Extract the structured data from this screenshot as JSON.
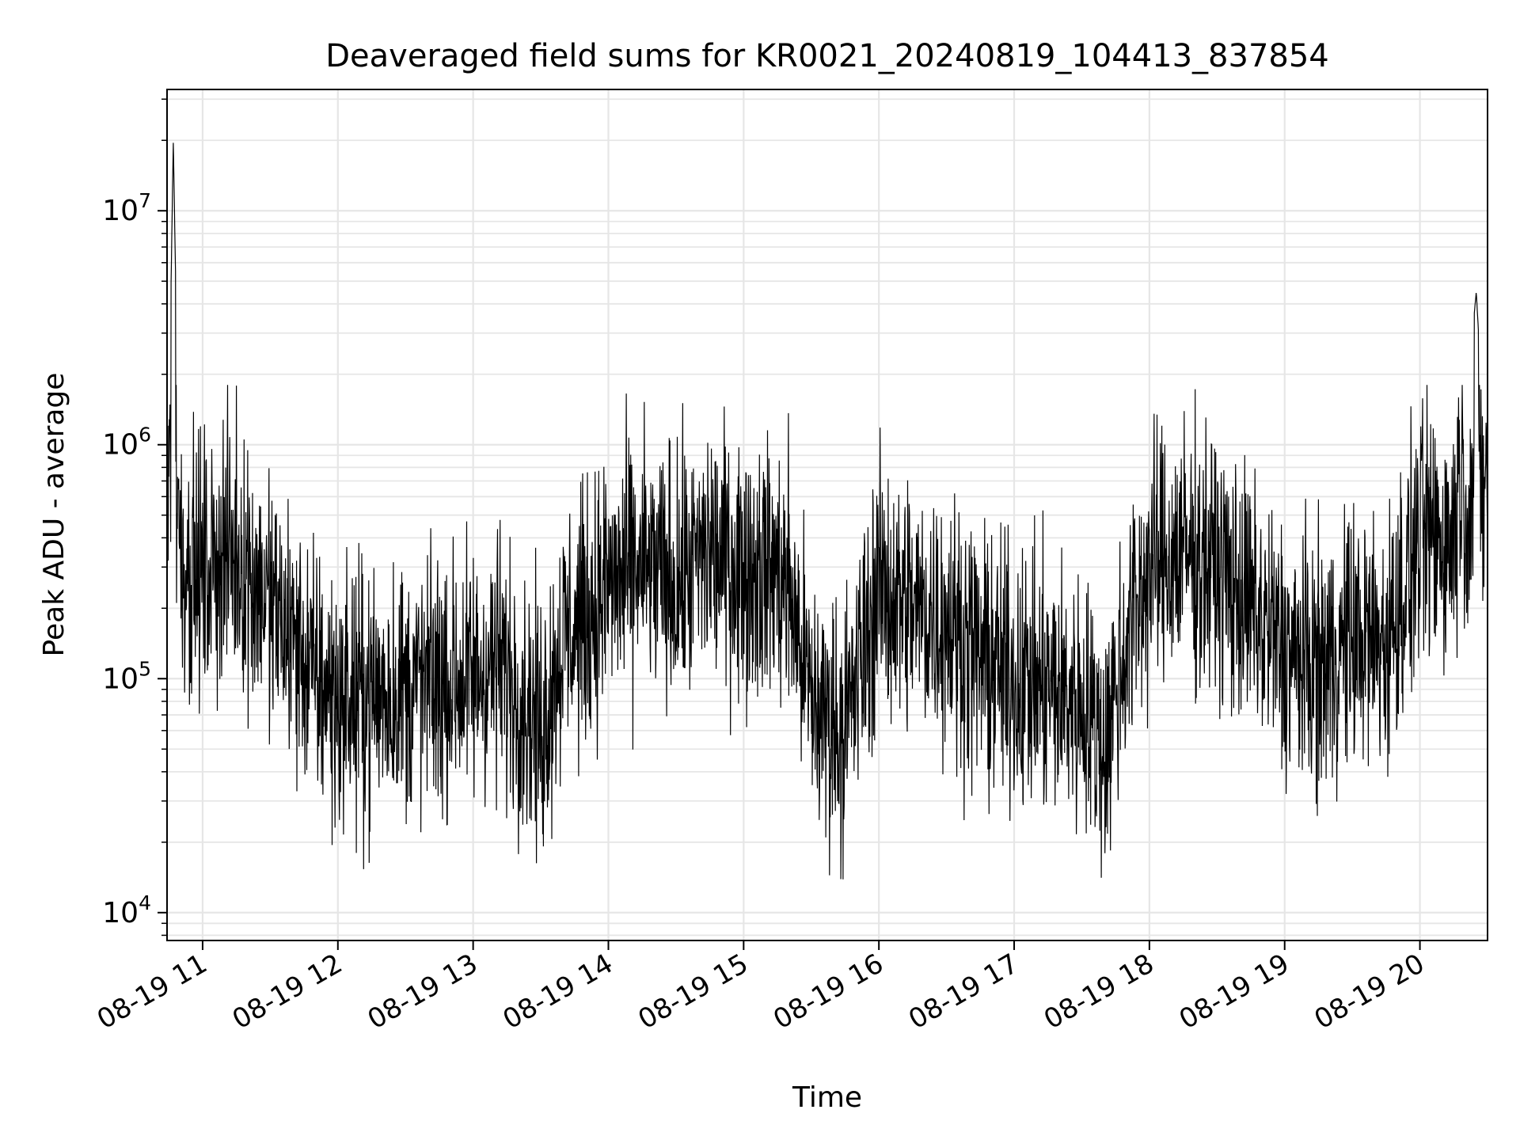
{
  "chart_data": {
    "type": "line",
    "title": "Deaveraged field sums for KR0021_20240819_104413_837854",
    "xlabel": "Time",
    "ylabel": "Peak ADU - average",
    "yscale": "log",
    "ylim": [
      7600,
      33000000
    ],
    "xlim": [
      "2024-08-19T10:44:13",
      "2024-08-19T20:30:00"
    ],
    "x_ticks": [
      {
        "time": "2024-08-19T11:00",
        "label": "08-19 11"
      },
      {
        "time": "2024-08-19T12:00",
        "label": "08-19 12"
      },
      {
        "time": "2024-08-19T13:00",
        "label": "08-19 13"
      },
      {
        "time": "2024-08-19T14:00",
        "label": "08-19 14"
      },
      {
        "time": "2024-08-19T15:00",
        "label": "08-19 15"
      },
      {
        "time": "2024-08-19T16:00",
        "label": "08-19 16"
      },
      {
        "time": "2024-08-19T17:00",
        "label": "08-19 17"
      },
      {
        "time": "2024-08-19T18:00",
        "label": "08-19 18"
      },
      {
        "time": "2024-08-19T19:00",
        "label": "08-19 19"
      },
      {
        "time": "2024-08-19T20:00",
        "label": "08-19 20"
      }
    ],
    "y_ticks": [
      {
        "value": 10000,
        "base": "10",
        "exp": "4"
      },
      {
        "value": 100000,
        "base": "10",
        "exp": "5"
      },
      {
        "value": 1000000,
        "base": "10",
        "exp": "6"
      },
      {
        "value": 10000000,
        "base": "10",
        "exp": "7"
      }
    ],
    "grid": true,
    "line_color": "#000000",
    "grid_color": "#e6e6e6",
    "series": [
      {
        "x": [
          "2024-08-19T10:44:13",
          "2024-08-19T10:47:00",
          "2024-08-19T10:50:00",
          "2024-08-19T10:55:00",
          "2024-08-19T11:00:00",
          "2024-08-19T11:10:00",
          "2024-08-19T11:20:00",
          "2024-08-19T11:30:00",
          "2024-08-19T11:40:00",
          "2024-08-19T11:50:00",
          "2024-08-19T12:00:00",
          "2024-08-19T12:15:00",
          "2024-08-19T12:30:00",
          "2024-08-19T12:45:00",
          "2024-08-19T13:00:00",
          "2024-08-19T13:10:00",
          "2024-08-19T13:20:00",
          "2024-08-19T13:30:00",
          "2024-08-19T13:40:00",
          "2024-08-19T13:50:00",
          "2024-08-19T14:00:00",
          "2024-08-19T14:15:00",
          "2024-08-19T14:30:00",
          "2024-08-19T14:45:00",
          "2024-08-19T15:00:00",
          "2024-08-19T15:10:00",
          "2024-08-19T15:20:00",
          "2024-08-19T15:30:00",
          "2024-08-19T15:45:00",
          "2024-08-19T16:00:00",
          "2024-08-19T16:15:00",
          "2024-08-19T16:30:00",
          "2024-08-19T16:45:00",
          "2024-08-19T17:00:00",
          "2024-08-19T17:15:00",
          "2024-08-19T17:30:00",
          "2024-08-19T17:40:00",
          "2024-08-19T17:50:00",
          "2024-08-19T18:00:00",
          "2024-08-19T18:15:00",
          "2024-08-19T18:30:00",
          "2024-08-19T18:45:00",
          "2024-08-19T19:00:00",
          "2024-08-19T19:15:00",
          "2024-08-19T19:30:00",
          "2024-08-19T19:45:00",
          "2024-08-19T20:00:00",
          "2024-08-19T20:15:00",
          "2024-08-19T20:25:00",
          "2024-08-19T20:30:00"
        ],
        "y": [
          400000,
          20000000,
          350000,
          300000,
          280000,
          350000,
          300000,
          200000,
          150000,
          100000,
          80000,
          85000,
          90000,
          95000,
          100000,
          120000,
          90000,
          60000,
          150000,
          180000,
          250000,
          300000,
          250000,
          350000,
          300000,
          300000,
          250000,
          80000,
          60000,
          250000,
          200000,
          180000,
          120000,
          100000,
          90000,
          80000,
          50000,
          150000,
          300000,
          350000,
          300000,
          200000,
          130000,
          110000,
          150000,
          140000,
          400000,
          400000,
          4500000,
          600000
        ]
      }
    ]
  }
}
